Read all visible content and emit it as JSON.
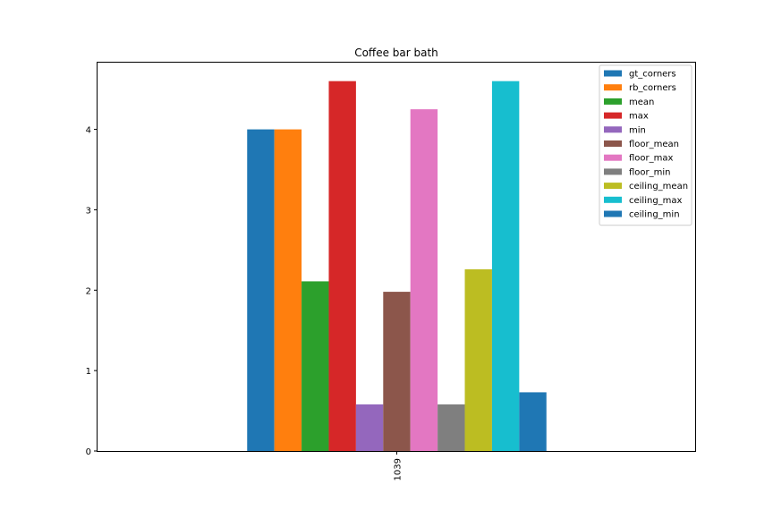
{
  "chart_data": {
    "type": "bar",
    "title": "Coffee bar bath",
    "categories": [
      "1039"
    ],
    "xlabel": "",
    "ylabel": "",
    "ylim": [
      0,
      4.83
    ],
    "yticks": [
      0,
      1,
      2,
      3,
      4
    ],
    "grid": false,
    "legend_position": "top-right",
    "series": [
      {
        "name": "gt_corners",
        "color": "#1f77b4",
        "values": [
          4.0
        ]
      },
      {
        "name": "rb_corners",
        "color": "#ff7f0e",
        "values": [
          4.0
        ]
      },
      {
        "name": "mean",
        "color": "#2ca02c",
        "values": [
          2.11
        ]
      },
      {
        "name": "max",
        "color": "#d62728",
        "values": [
          4.6
        ]
      },
      {
        "name": "min",
        "color": "#9467bd",
        "values": [
          0.58
        ]
      },
      {
        "name": "floor_mean",
        "color": "#8c564b",
        "values": [
          1.98
        ]
      },
      {
        "name": "floor_max",
        "color": "#e377c2",
        "values": [
          4.25
        ]
      },
      {
        "name": "floor_min",
        "color": "#7f7f7f",
        "values": [
          0.58
        ]
      },
      {
        "name": "ceiling_mean",
        "color": "#bcbd22",
        "values": [
          2.26
        ]
      },
      {
        "name": "ceiling_max",
        "color": "#17becf",
        "values": [
          4.6
        ]
      },
      {
        "name": "ceiling_min",
        "color": "#1f77b4",
        "values": [
          0.73
        ]
      }
    ]
  }
}
